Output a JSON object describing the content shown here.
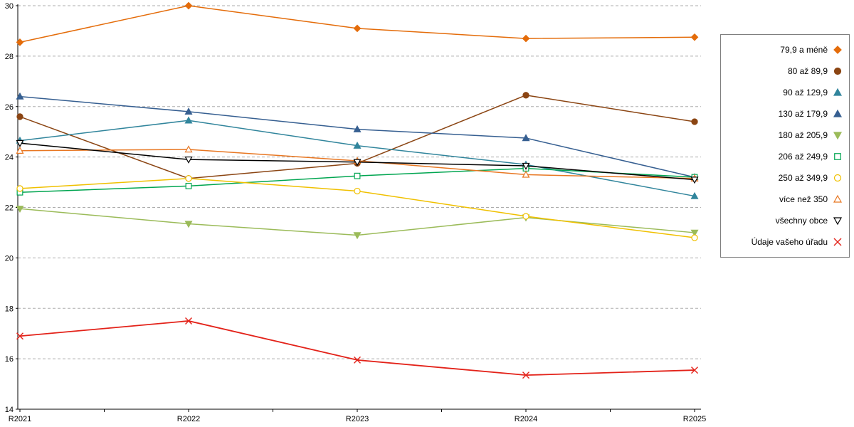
{
  "chart_data": {
    "type": "line",
    "title": "",
    "xlabel": "",
    "ylabel": "",
    "x": [
      "R2021",
      "R2022",
      "R2023",
      "R2024",
      "R2025"
    ],
    "ylim": [
      14,
      30
    ],
    "ytick_step": 2,
    "grid": "horizontal-dashed",
    "legend_position": "right",
    "series": [
      {
        "name": "79,9 a méně",
        "color": "#E46C0A",
        "marker": "diamond",
        "filled": true,
        "values": [
          28.55,
          30.0,
          29.1,
          28.7,
          28.75
        ]
      },
      {
        "name": "80 až 89,9",
        "color": "#8B4513",
        "marker": "circle",
        "filled": true,
        "values": [
          25.6,
          23.15,
          23.75,
          26.45,
          25.4
        ]
      },
      {
        "name": "90 až 129,9",
        "color": "#31859C",
        "marker": "triangle-up",
        "filled": true,
        "values": [
          24.65,
          25.45,
          24.45,
          23.7,
          22.45
        ]
      },
      {
        "name": "130 až 179,9",
        "color": "#365F91",
        "marker": "triangle-up",
        "filled": true,
        "values": [
          26.4,
          25.8,
          25.1,
          24.75,
          23.2
        ]
      },
      {
        "name": "180 až 205,9",
        "color": "#9BBB59",
        "marker": "triangle-down",
        "filled": true,
        "values": [
          21.95,
          21.35,
          20.9,
          21.6,
          21.0
        ]
      },
      {
        "name": "206 až 249,9",
        "color": "#00A550",
        "marker": "square",
        "filled": false,
        "values": [
          22.6,
          22.85,
          23.25,
          23.55,
          23.2
        ]
      },
      {
        "name": "250 až 349,9",
        "color": "#F0C000",
        "marker": "circle",
        "filled": false,
        "values": [
          22.75,
          23.15,
          22.65,
          21.65,
          20.8
        ]
      },
      {
        "name": "více než 350",
        "color": "#E87722",
        "marker": "triangle-up",
        "filled": false,
        "values": [
          24.25,
          24.3,
          23.85,
          23.3,
          23.15
        ]
      },
      {
        "name": "všechny obce",
        "color": "#000000",
        "marker": "triangle-down",
        "filled": false,
        "values": [
          24.55,
          23.9,
          23.8,
          23.65,
          23.1
        ]
      },
      {
        "name": "Údaje vašeho úřadu",
        "color": "#E32219",
        "marker": "x",
        "filled": true,
        "values": [
          16.9,
          17.5,
          15.95,
          15.35,
          15.55
        ]
      }
    ]
  }
}
